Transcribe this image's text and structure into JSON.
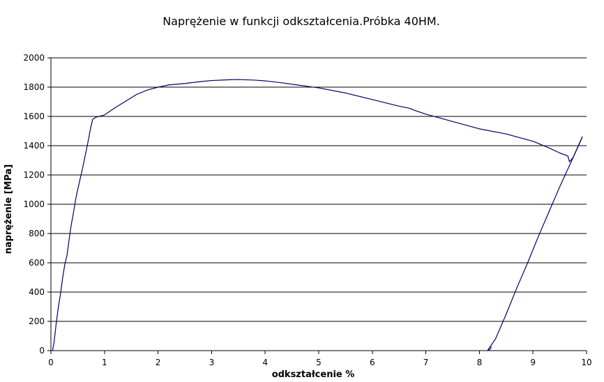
{
  "chart_data": {
    "type": "line",
    "title": "Naprężenie w funkcji odkształcenia.Próbka 40HM.",
    "xlabel": "odkształcenie %",
    "ylabel": "naprężenie [MPa]",
    "xlim": [
      0,
      10
    ],
    "ylim": [
      0,
      2000
    ],
    "x_ticks": [
      "0",
      "1",
      "2",
      "3",
      "4",
      "5",
      "6",
      "7",
      "8",
      "9",
      "10"
    ],
    "y_ticks": [
      "0",
      "200",
      "400",
      "600",
      "800",
      "1000",
      "1200",
      "1400",
      "1600",
      "1800",
      "2000"
    ],
    "grid": "horizontal",
    "line_color": "#000066",
    "series": [
      {
        "points": [
          [
            0.03,
            0
          ],
          [
            0.06,
            60
          ],
          [
            0.1,
            190
          ],
          [
            0.14,
            300
          ],
          [
            0.18,
            390
          ],
          [
            0.22,
            500
          ],
          [
            0.26,
            590
          ],
          [
            0.3,
            650
          ],
          [
            0.34,
            760
          ],
          [
            0.38,
            860
          ],
          [
            0.42,
            940
          ],
          [
            0.46,
            1030
          ],
          [
            0.5,
            1100
          ],
          [
            0.55,
            1180
          ],
          [
            0.6,
            1260
          ],
          [
            0.65,
            1350
          ],
          [
            0.7,
            1440
          ],
          [
            0.74,
            1520
          ],
          [
            0.78,
            1580
          ],
          [
            0.84,
            1595
          ],
          [
            0.9,
            1600
          ],
          [
            1.0,
            1610
          ],
          [
            1.2,
            1660
          ],
          [
            1.4,
            1705
          ],
          [
            1.6,
            1750
          ],
          [
            1.8,
            1780
          ],
          [
            2.0,
            1800
          ],
          [
            2.2,
            1815
          ],
          [
            2.5,
            1825
          ],
          [
            2.8,
            1838
          ],
          [
            3.0,
            1845
          ],
          [
            3.3,
            1850
          ],
          [
            3.5,
            1852
          ],
          [
            3.8,
            1848
          ],
          [
            4.0,
            1843
          ],
          [
            4.3,
            1830
          ],
          [
            4.6,
            1815
          ],
          [
            5.0,
            1795
          ],
          [
            5.5,
            1760
          ],
          [
            6.0,
            1715
          ],
          [
            6.5,
            1670
          ],
          [
            6.7,
            1655
          ],
          [
            6.8,
            1640
          ],
          [
            7.0,
            1615
          ],
          [
            7.5,
            1565
          ],
          [
            8.0,
            1515
          ],
          [
            8.5,
            1480
          ],
          [
            9.0,
            1430
          ],
          [
            9.3,
            1385
          ],
          [
            9.5,
            1350
          ],
          [
            9.65,
            1330
          ],
          [
            9.68,
            1290
          ],
          [
            9.75,
            1320
          ],
          [
            9.85,
            1400
          ],
          [
            9.92,
            1460
          ]
        ]
      },
      {
        "points": [
          [
            9.92,
            1460
          ],
          [
            9.7,
            1280
          ],
          [
            9.5,
            1120
          ],
          [
            9.3,
            950
          ],
          [
            9.1,
            780
          ],
          [
            8.9,
            600
          ],
          [
            8.7,
            430
          ],
          [
            8.5,
            250
          ],
          [
            8.3,
            80
          ],
          [
            8.15,
            0
          ],
          [
            8.2,
            10
          ],
          [
            8.22,
            25
          ]
        ]
      }
    ]
  }
}
